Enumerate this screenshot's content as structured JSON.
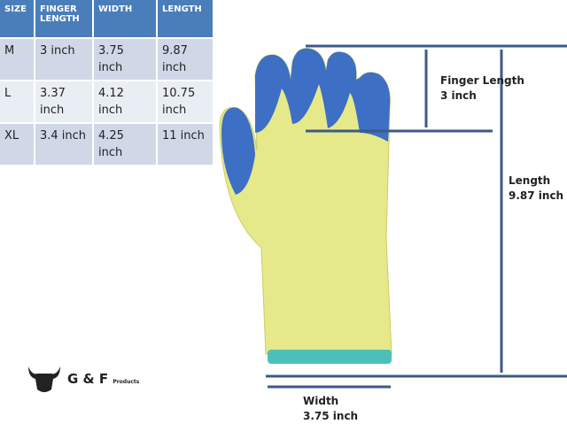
{
  "size_table": {
    "headers": [
      "SIZE",
      "FINGER LENGTH",
      "WIDTH",
      "LENGTH"
    ],
    "rows": [
      {
        "size": "M",
        "finger": "3 inch",
        "width": "3.75 inch",
        "length": "9.87 inch"
      },
      {
        "size": "L",
        "finger": "3.37 inch",
        "width": "4.12 inch",
        "length": "10.75 inch"
      },
      {
        "size": "XL",
        "finger": "3.4 inch",
        "width": "4.25 inch",
        "length": "11 inch"
      }
    ]
  },
  "annotations": {
    "finger_label": "Finger Length",
    "finger_value": "3 inch",
    "length_label": "Length",
    "length_value": "9.87 inch",
    "width_label": "Width",
    "width_value": "3.75 inch"
  },
  "logo": {
    "text": "G & F",
    "sub": "Products"
  },
  "colors": {
    "header": "#4a7ebb",
    "arrow": "#3b5a8a",
    "glove_knit": "#e6e98a",
    "glove_coating": "#3d6fc4"
  }
}
